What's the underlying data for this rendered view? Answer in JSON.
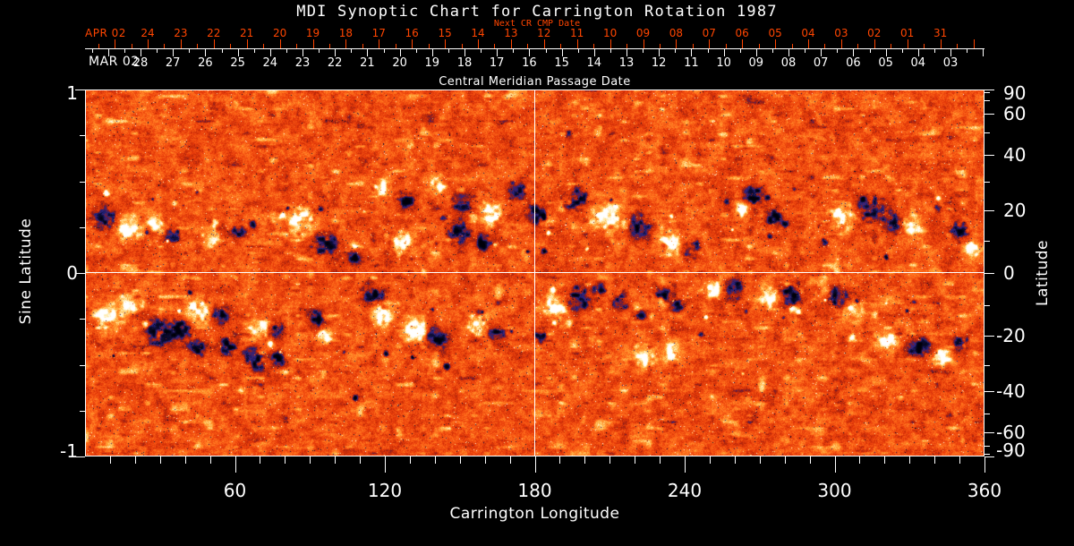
{
  "title": "MDI Synoptic Chart for Carrington Rotation 1987",
  "top_axis": {
    "label": "Next CR CMP Date",
    "month_label": "APR 02",
    "days": [
      "24",
      "23",
      "22",
      "21",
      "20",
      "19",
      "18",
      "17",
      "16",
      "15",
      "14",
      "13",
      "12",
      "11",
      "10",
      "09",
      "08",
      "07",
      "06",
      "05",
      "04",
      "03",
      "02",
      "01",
      "31"
    ]
  },
  "cmp_axis": {
    "label": "Central Meridian Passage Date",
    "month_label": "MAR 02",
    "days": [
      "28",
      "27",
      "26",
      "25",
      "24",
      "23",
      "22",
      "21",
      "20",
      "19",
      "18",
      "17",
      "16",
      "15",
      "14",
      "13",
      "12",
      "11",
      "10",
      "09",
      "08",
      "07",
      "06",
      "05",
      "04",
      "03"
    ]
  },
  "left_axis": {
    "label": "Sine Latitude",
    "tick_labels": [
      "1",
      "0",
      "-1"
    ],
    "tick_values": [
      1,
      0,
      -1
    ],
    "minor_step": 0.25
  },
  "right_axis": {
    "label": "Latitude",
    "tick_labels": [
      "90",
      "60",
      "40",
      "20",
      "0",
      "-20",
      "-40",
      "-60",
      "-90"
    ],
    "tick_values": [
      90,
      60,
      40,
      20,
      0,
      -20,
      -40,
      -60,
      -90
    ],
    "minor_step_deg": 10
  },
  "bottom_axis": {
    "label": "Carrington Longitude",
    "tick_labels": [
      "60",
      "120",
      "180",
      "240",
      "300",
      "360"
    ],
    "tick_values": [
      60,
      120,
      180,
      240,
      300,
      360
    ],
    "minor_step_deg": 10
  },
  "colors": {
    "background": "#000000",
    "axis_text": "#ffffff",
    "next_cr_axis": "#ff4500",
    "map_base_orange": "#e83a09",
    "map_positive_polarity": "#ffffff",
    "map_negative_polarity": "#00000c"
  },
  "chart_data": {
    "type": "heatmap",
    "title": "MDI Synoptic Chart for Carrington Rotation 1987",
    "carrington_rotation": 1987,
    "x_axis": {
      "label": "Carrington Longitude",
      "range": [
        0,
        360
      ],
      "major_tick_step": 60,
      "minor_tick_step": 10
    },
    "y_axis_left": {
      "label": "Sine Latitude",
      "range": [
        -1,
        1
      ],
      "labeled_ticks": [
        1,
        0,
        -1
      ],
      "minor_step": 0.25
    },
    "y_axis_right": {
      "label": "Latitude",
      "scale": "sine",
      "labeled_ticks": [
        90,
        60,
        40,
        20,
        0,
        -20,
        -40,
        -60,
        -90
      ],
      "minor_step_deg": 10
    },
    "top_date_axis": {
      "label": "Next CR CMP Date",
      "month": "APR 02",
      "day_labels_right_to_left": false
    },
    "cmp_date_axis": {
      "label": "Central Meridian Passage Date",
      "month": "MAR 02"
    },
    "reference_lines": [
      {
        "axis": "x",
        "value": 180
      },
      {
        "axis": "y_sine_latitude",
        "value": 0
      }
    ],
    "colormap": {
      "negative_polarity": "black/dark navy blue",
      "near_zero_field": "orange-red granular",
      "positive_polarity": "yellow to white"
    },
    "activity_bands_sine_latitude": [
      [
        0.1,
        0.5
      ],
      [
        -0.55,
        -0.05
      ]
    ],
    "description": "Full-sun magnetogram synoptic map: noisy orange background with bipolar active regions (black negative / white positive patches) concentrated in two latitude bands on either side of the equator; white crosshair at longitude 180 and sine latitude 0."
  }
}
